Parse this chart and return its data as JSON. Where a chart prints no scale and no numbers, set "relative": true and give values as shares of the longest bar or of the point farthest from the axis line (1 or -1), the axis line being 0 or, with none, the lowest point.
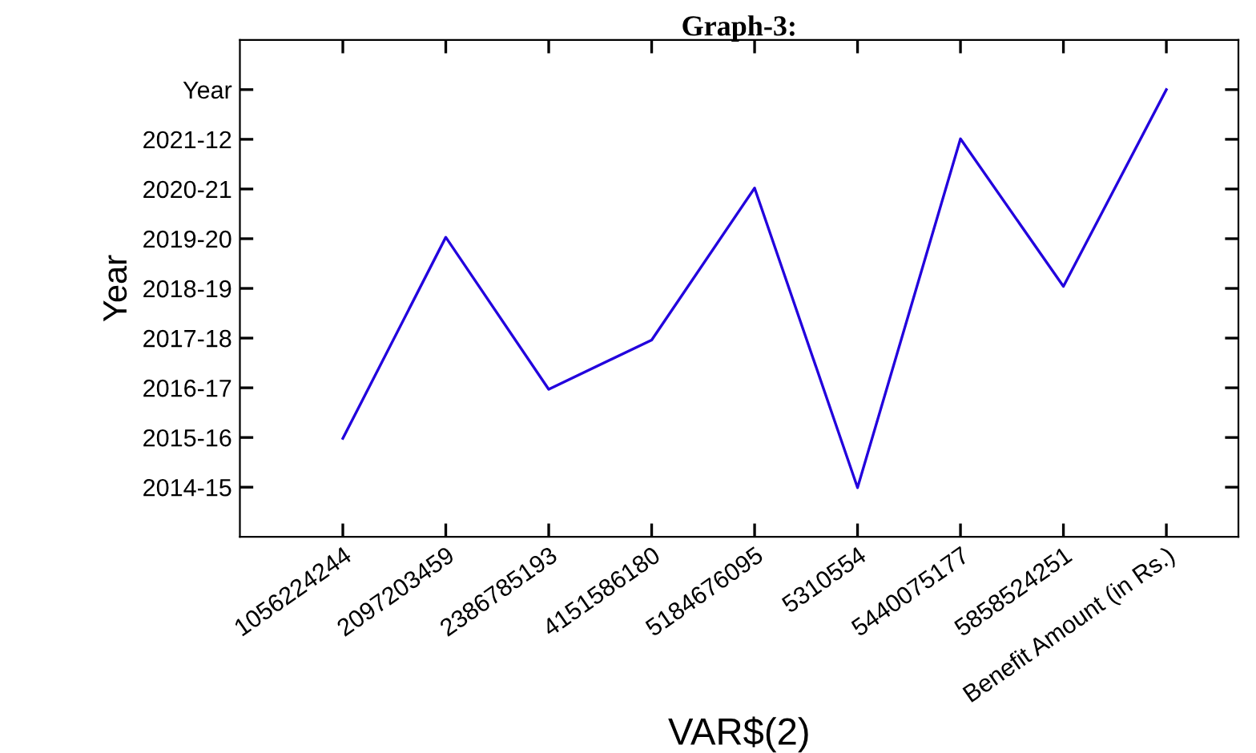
{
  "chart_data": {
    "type": "line",
    "title": "Graph-3:",
    "xlabel": "VAR$(2)",
    "ylabel": "Year",
    "categories": [
      "1056224244",
      "2097203459",
      "2386785193",
      "4151586180",
      "5184676095",
      "5310554",
      "5440075177",
      "5858524251",
      "Benefit Amount (in Rs.)"
    ],
    "relative": true,
    "series": [
      {
        "color": "#2200dd",
        "values": [
          0.22,
          0.67,
          0.33,
          0.44,
          0.78,
          0.11,
          0.89,
          0.56,
          1
        ]
      }
    ],
    "annotations": [
      "2014-15",
      "2015-16",
      "2016-17",
      "2017-18",
      "2018-19",
      "2019-20",
      "2020-21",
      "2021-12",
      "Year"
    ],
    "grid": false,
    "marker": "none",
    "line_style": "solid"
  }
}
